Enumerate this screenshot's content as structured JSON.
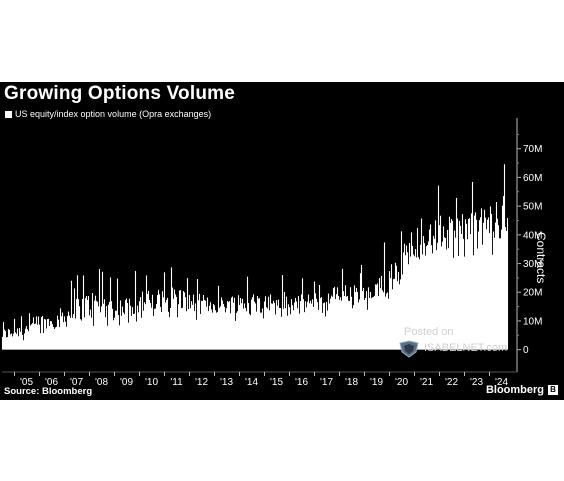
{
  "chart_data": {
    "type": "area",
    "title": "Growing Options Volume",
    "legend": "US equity/index option volume (Opra exchanges)",
    "ylabel": "Contracts",
    "y_axis_position": "right",
    "ylim": [
      -5000000,
      80000000
    ],
    "y_ticks": [
      0,
      10000000,
      20000000,
      30000000,
      40000000,
      50000000,
      60000000,
      70000000
    ],
    "y_tick_labels": [
      "0",
      "10M",
      "20M",
      "30M",
      "40M",
      "50M",
      "60M",
      "70M"
    ],
    "xlim": [
      2004.5,
      2024.9
    ],
    "x_ticks": [
      2005,
      2006,
      2007,
      2008,
      2009,
      2010,
      2011,
      2012,
      2013,
      2014,
      2015,
      2016,
      2017,
      2018,
      2019,
      2020,
      2021,
      2022,
      2023,
      2024
    ],
    "x_tick_labels": [
      "'05",
      "'06",
      "'07",
      "'08",
      "'09",
      "'10",
      "'11",
      "'12",
      "'13",
      "'14",
      "'15",
      "'16",
      "'17",
      "'18",
      "'19",
      "'20",
      "'21",
      "'22",
      "'23",
      "'24"
    ],
    "grid": false,
    "series": [
      {
        "values_unit": "contracts (approximate monthly averages of daily volume)",
        "x": [
          2004.5,
          2005.0,
          2005.5,
          2006.0,
          2006.5,
          2007.0,
          2007.5,
          2008.0,
          2008.5,
          2009.0,
          2009.5,
          2010.0,
          2010.5,
          2011.0,
          2011.5,
          2012.0,
          2012.5,
          2013.0,
          2013.5,
          2014.0,
          2014.5,
          2015.0,
          2015.5,
          2016.0,
          2016.5,
          2017.0,
          2017.5,
          2018.0,
          2018.5,
          2019.0,
          2019.5,
          2020.0,
          2020.5,
          2021.0,
          2021.5,
          2022.0,
          2022.5,
          2023.0,
          2023.5,
          2024.0,
          2024.5,
          2024.75
        ],
        "values": [
          5000000,
          6000000,
          7000000,
          9000000,
          9500000,
          11000000,
          13500000,
          15000000,
          15500000,
          13500000,
          14500000,
          16500000,
          16000000,
          17000000,
          18000000,
          16000000,
          15500000,
          15000000,
          15500000,
          16000000,
          15500000,
          16000000,
          16500000,
          16000000,
          15500000,
          16500000,
          16500000,
          19000000,
          18500000,
          18000000,
          19000000,
          25000000,
          30000000,
          38000000,
          37000000,
          40000000,
          39000000,
          40000000,
          41000000,
          43000000,
          45000000,
          47000000
        ],
        "peak_values": [
          10000000,
          12000000,
          14000000,
          20000000,
          18000000,
          25000000,
          27000000,
          30000000,
          29000000,
          26000000,
          25000000,
          30000000,
          27000000,
          32000000,
          30000000,
          25000000,
          25000000,
          22000000,
          25000000,
          27000000,
          28000000,
          25000000,
          26000000,
          28000000,
          25000000,
          25000000,
          26000000,
          32000000,
          30000000,
          30000000,
          30000000,
          45000000,
          46000000,
          52000000,
          50000000,
          60000000,
          56000000,
          66000000,
          60000000,
          65000000,
          72000000,
          70000000
        ],
        "trough_values": [
          1000000,
          2000000,
          3000000,
          5000000,
          6000000,
          7000000,
          8000000,
          7000000,
          8000000,
          8000000,
          9000000,
          9000000,
          9000000,
          10000000,
          10000000,
          10000000,
          9000000,
          10000000,
          10000000,
          10000000,
          9000000,
          11000000,
          10000000,
          10000000,
          10000000,
          11000000,
          11000000,
          13000000,
          13000000,
          12000000,
          12000000,
          15000000,
          22000000,
          29000000,
          28000000,
          30000000,
          27000000,
          27000000,
          30000000,
          32000000,
          36000000,
          38000000
        ]
      }
    ]
  },
  "footer": {
    "source": "Source: Bloomberg",
    "brand": "Bloomberg",
    "brand_mark": "B"
  },
  "watermark": {
    "posted": "Posted on",
    "name": "ISABELNET.com"
  },
  "colors": {
    "background": "#000000",
    "series": "#ffffff",
    "text": "#ffffff"
  }
}
